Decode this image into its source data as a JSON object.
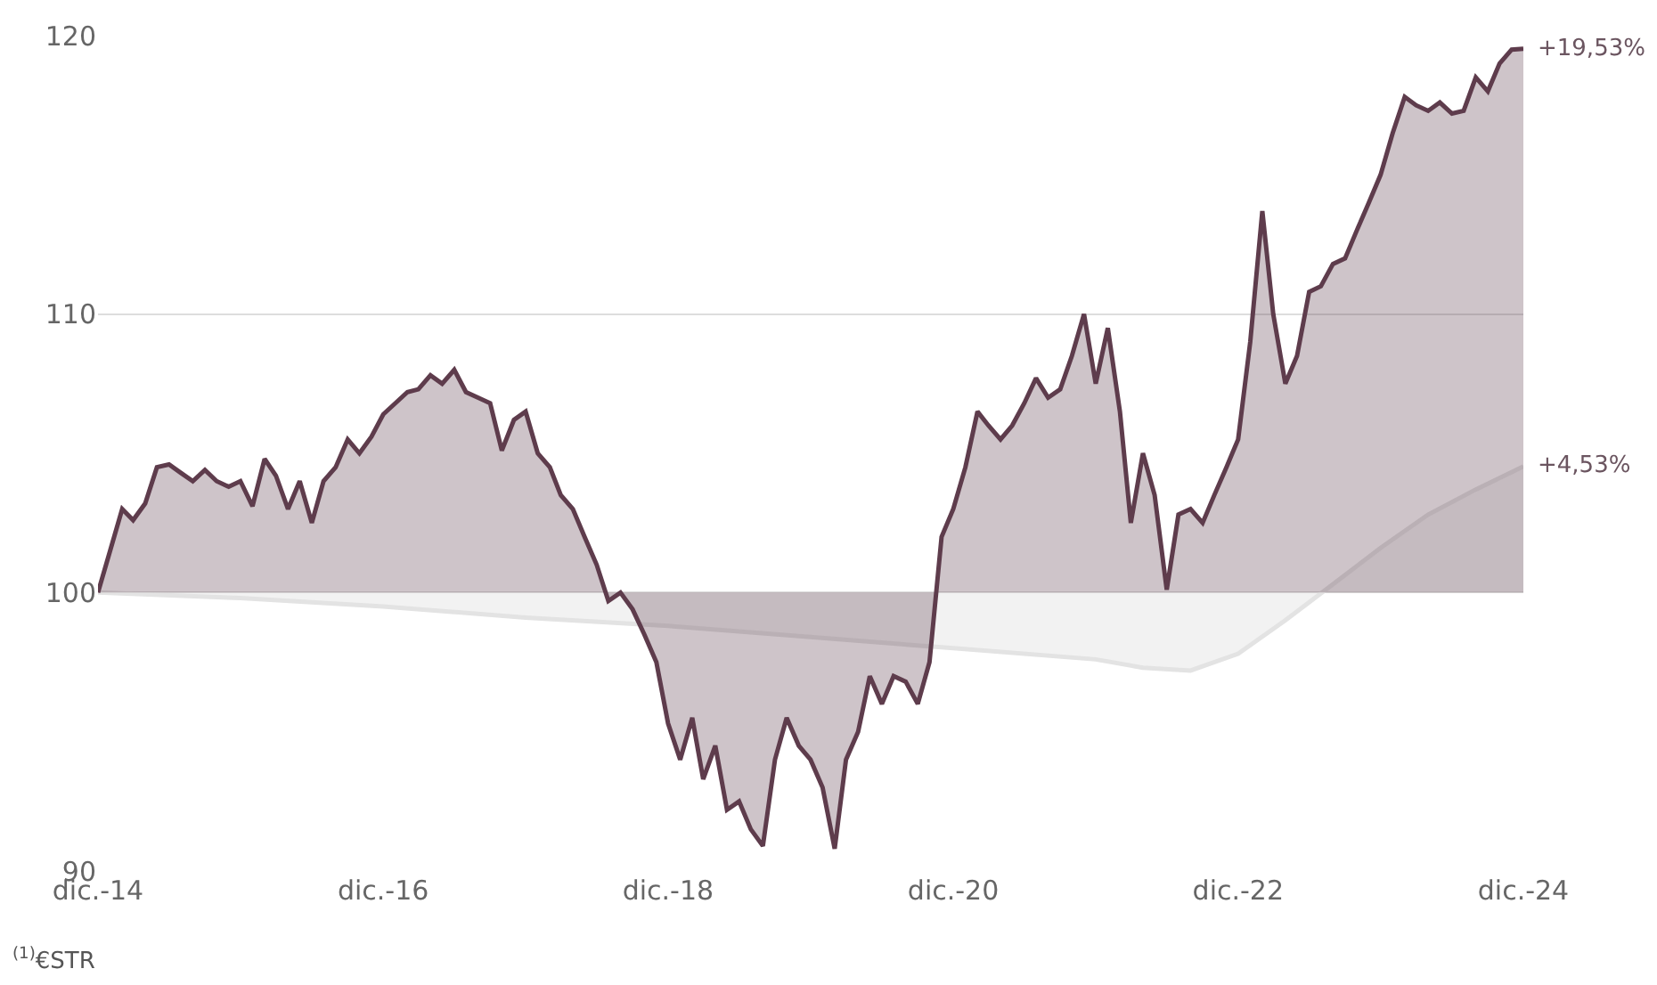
{
  "chart_data": {
    "type": "area",
    "x": [
      "2014-12",
      "2015-01",
      "2015-02",
      "2015-03",
      "2015-04",
      "2015-05",
      "2015-06",
      "2015-07",
      "2015-08",
      "2015-09",
      "2015-10",
      "2015-11",
      "2015-12",
      "2016-01",
      "2016-02",
      "2016-03",
      "2016-04",
      "2016-05",
      "2016-06",
      "2016-07",
      "2016-08",
      "2016-09",
      "2016-10",
      "2016-11",
      "2016-12",
      "2017-01",
      "2017-02",
      "2017-03",
      "2017-04",
      "2017-05",
      "2017-06",
      "2017-07",
      "2017-08",
      "2017-09",
      "2017-10",
      "2017-11",
      "2017-12",
      "2018-01",
      "2018-02",
      "2018-03",
      "2018-04",
      "2018-05",
      "2018-06",
      "2018-07",
      "2018-08",
      "2018-09",
      "2018-10",
      "2018-11",
      "2018-12",
      "2019-01",
      "2019-02",
      "2019-03",
      "2019-04",
      "2019-05",
      "2019-06",
      "2019-07",
      "2019-08",
      "2019-09",
      "2019-10",
      "2019-11",
      "2019-12",
      "2020-01",
      "2020-02",
      "2020-03",
      "2020-04",
      "2020-05",
      "2020-06",
      "2020-07",
      "2020-08",
      "2020-09",
      "2020-10",
      "2020-11",
      "2020-12",
      "2021-01",
      "2021-02",
      "2021-03",
      "2021-04",
      "2021-05",
      "2021-06",
      "2021-07",
      "2021-08",
      "2021-09",
      "2021-10",
      "2021-11",
      "2021-12",
      "2022-01",
      "2022-02",
      "2022-03",
      "2022-04",
      "2022-05",
      "2022-06",
      "2022-07",
      "2022-08",
      "2022-09",
      "2022-10",
      "2022-11",
      "2022-12",
      "2023-01",
      "2023-02",
      "2023-03",
      "2023-04",
      "2023-05",
      "2023-06",
      "2023-07",
      "2023-08",
      "2023-09",
      "2023-10",
      "2023-11",
      "2023-12",
      "2024-01",
      "2024-02",
      "2024-03",
      "2024-04",
      "2024-05",
      "2024-06",
      "2024-07",
      "2024-08",
      "2024-09",
      "2024-10",
      "2024-11",
      "2024-12"
    ],
    "series": [
      {
        "color": "#e3e3e3",
        "x": [
          "2014-12",
          "2015-12",
          "2016-12",
          "2017-12",
          "2018-12",
          "2019-12",
          "2020-12",
          "2021-12",
          "2022-04",
          "2022-08",
          "2022-12",
          "2023-04",
          "2023-08",
          "2023-12",
          "2024-04",
          "2024-08",
          "2024-12"
        ],
        "values": [
          100,
          99.8,
          99.5,
          99.1,
          98.8,
          98.4,
          98.0,
          97.6,
          97.3,
          97.2,
          97.8,
          99.0,
          100.3,
          101.6,
          102.8,
          103.7,
          104.53
        ]
      },
      {
        "color": "#5e3c4c",
        "values": [
          100,
          101.5,
          103,
          102.6,
          103.2,
          104.5,
          104.6,
          104.3,
          104,
          104.4,
          104,
          103.8,
          104,
          103.1,
          104.8,
          104.2,
          103,
          104,
          102.5,
          104,
          104.5,
          105.5,
          105,
          105.6,
          106.4,
          106.8,
          107.2,
          107.3,
          107.8,
          107.5,
          108,
          107.2,
          107,
          106.8,
          105.1,
          106.2,
          106.5,
          105,
          104.5,
          103.5,
          103,
          102,
          101,
          99.7,
          100,
          99.4,
          98.5,
          97.5,
          95.3,
          94,
          95.5,
          93.3,
          94.5,
          92.2,
          92.5,
          91.5,
          90.9,
          94,
          95.5,
          94.5,
          94,
          93,
          90.8,
          94,
          95,
          97,
          96,
          97,
          96.8,
          96,
          97.5,
          102,
          103,
          104.5,
          106.5,
          106,
          105.5,
          106,
          106.8,
          107.7,
          107,
          107.3,
          108.5,
          110,
          107.5,
          109.5,
          106.5,
          102.5,
          105,
          103.5,
          100.1,
          102.8,
          103,
          102.5,
          103.5,
          104.5,
          105.5,
          109,
          113.7,
          110,
          107.5,
          108.5,
          110.8,
          111,
          111.8,
          112,
          113,
          114,
          115,
          116.5,
          117.8,
          117.5,
          117.3,
          117.6,
          117.2,
          117.3,
          118.5,
          118,
          119,
          119.5,
          119.53
        ]
      }
    ],
    "ylim": [
      90,
      120
    ],
    "yticks": [
      90,
      100,
      110,
      120
    ],
    "xlim": [
      "2014-12",
      "2024-12"
    ],
    "xticks": [
      {
        "value": "2014-12",
        "label": "dic.-14"
      },
      {
        "value": "2016-12",
        "label": "dic.-16"
      },
      {
        "value": "2018-12",
        "label": "dic.-18"
      },
      {
        "value": "2020-12",
        "label": "dic.-20"
      },
      {
        "value": "2022-12",
        "label": "dic.-22"
      },
      {
        "value": "2024-12",
        "label": "dic.-24"
      }
    ],
    "grid": "y",
    "annotations": [
      {
        "text": "+19,53%",
        "x": "2024-12",
        "y": 119.53
      },
      {
        "text": "+4,53%",
        "x": "2024-12",
        "y": 104.53
      },
      "$^{(1)}$€STR"
    ]
  }
}
